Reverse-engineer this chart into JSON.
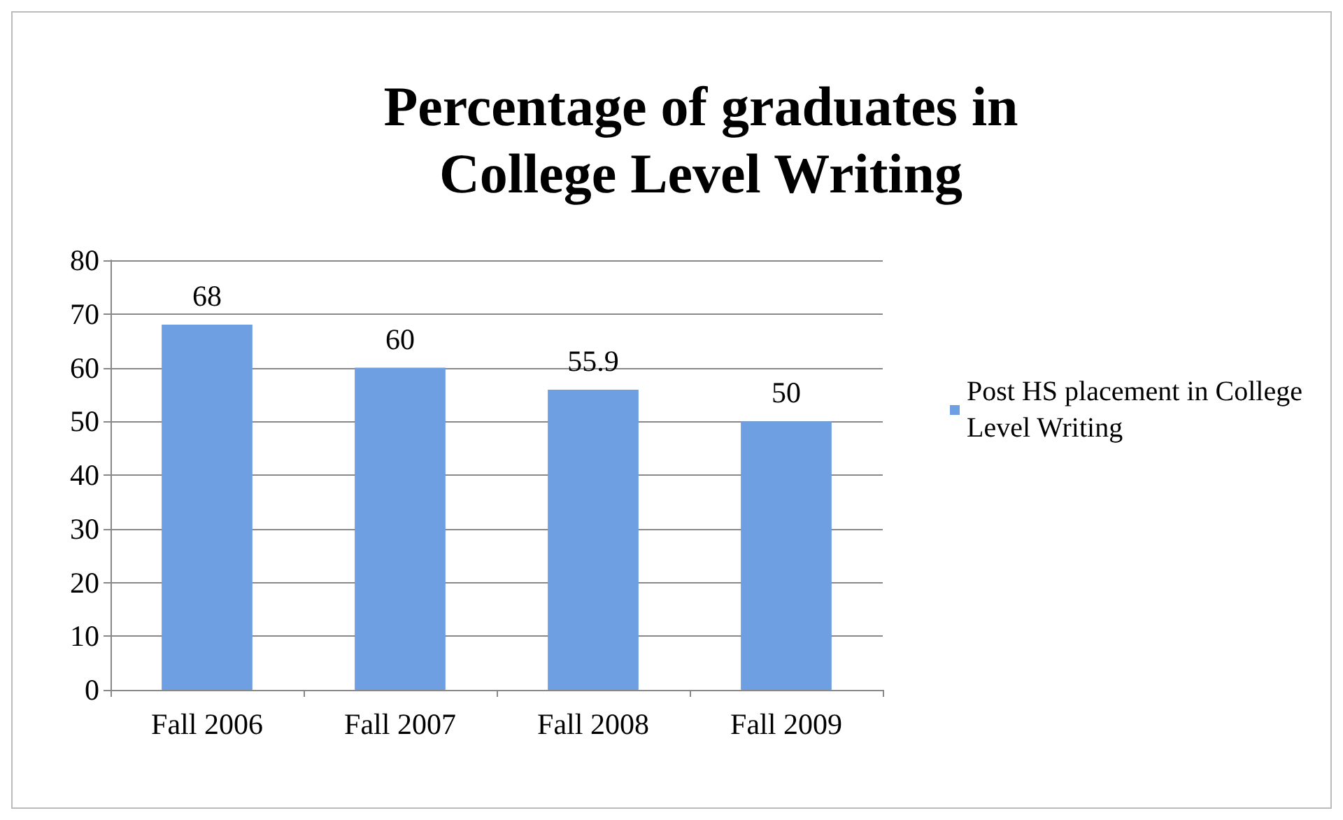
{
  "chart_data": {
    "type": "bar",
    "title": "Percentage of graduates in\nCollege Level Writing",
    "categories": [
      "Fall 2006",
      "Fall 2007",
      "Fall 2008",
      "Fall 2009"
    ],
    "series": [
      {
        "name": "Post HS placement in College Level Writing",
        "color": "#6e9fe2",
        "values": [
          68,
          60,
          55.9,
          50
        ]
      }
    ],
    "ylim": [
      0,
      80
    ],
    "yticks": [
      0,
      10,
      20,
      30,
      40,
      50,
      60,
      70,
      80
    ],
    "grid": "y",
    "legend": "right",
    "data_labels": true
  }
}
